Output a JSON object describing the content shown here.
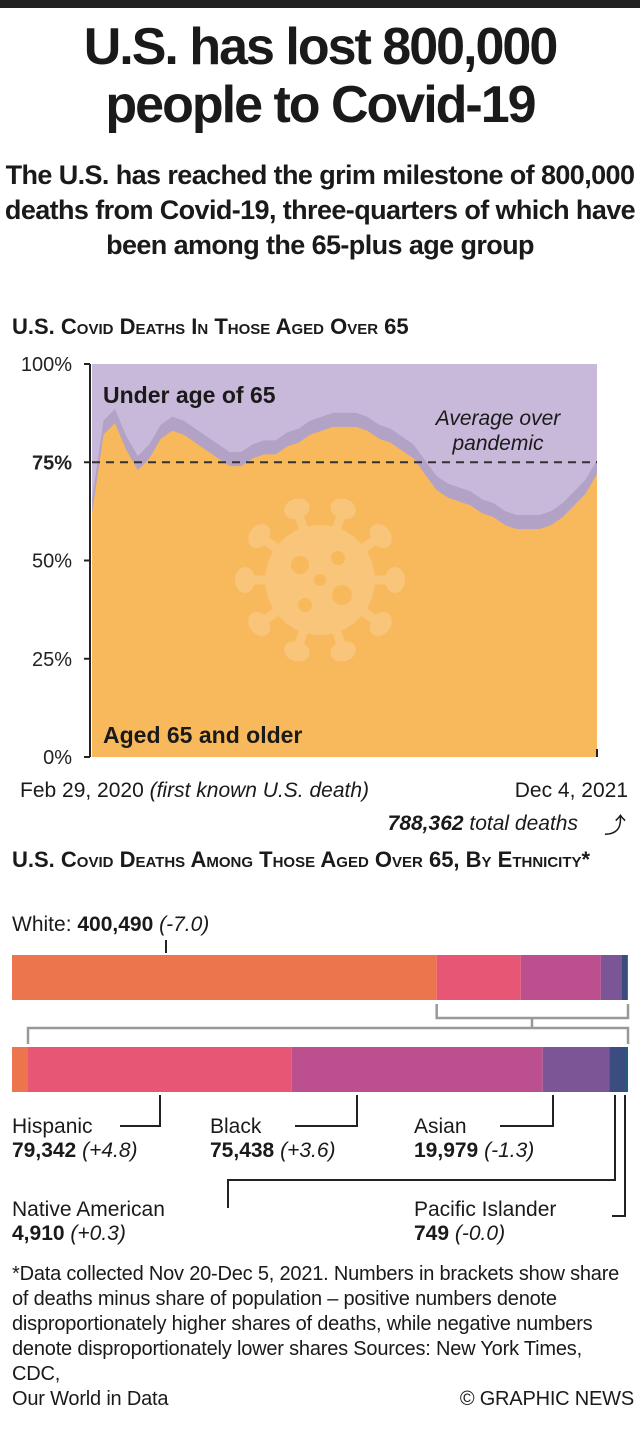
{
  "header": {
    "title_line1": "U.S. has lost 800,000",
    "title_line2": "people to Covid-19",
    "subtitle": "The U.S. has reached the grim milestone of 800,000 deaths from Covid-19, three-quarters of which have been among the 65-plus age group"
  },
  "chart_data": [
    {
      "type": "area",
      "title": "U.S. Covid Deaths In Those Aged Over 65",
      "ylim": [
        0,
        100
      ],
      "yticks": [
        "0%",
        "25%",
        "50%",
        "75%",
        "100%"
      ],
      "x_start_label": "Feb 29, 2020",
      "x_start_note": "(first known U.S. death)",
      "x_end_label": "Dec 4, 2021",
      "total_value": "788,362",
      "total_label": "total deaths",
      "series_labels": {
        "upper": "Under age of 65",
        "lower": "Aged 65 and older"
      },
      "average": 75,
      "average_label_1": "Average over",
      "average_label_2": "pandemic",
      "values": [
        62,
        82,
        85,
        78,
        73,
        76,
        81,
        83,
        82,
        80,
        78,
        76,
        74,
        74,
        76,
        77,
        77,
        79,
        80,
        82,
        83,
        84,
        84,
        84,
        83,
        81,
        80,
        78,
        76,
        72,
        68,
        66,
        65,
        64,
        62,
        61,
        59,
        58,
        58,
        58,
        59,
        61,
        64,
        67,
        72
      ]
    },
    {
      "type": "bar",
      "title": "U.S. Covid Deaths Among Those Aged Over 65, By Ethnicity*",
      "categories": [
        "White",
        "Hispanic",
        "Black",
        "Asian",
        "Native American",
        "Pacific Islander"
      ],
      "values": [
        400490,
        79342,
        75438,
        19979,
        4910,
        749
      ],
      "value_labels": [
        "400,490",
        "79,342",
        "75,438",
        "19,979",
        "4,910",
        "749"
      ],
      "diffs": [
        "(-7.0)",
        "(+4.8)",
        "(+3.6)",
        "(-1.3)",
        "(+0.3)",
        "(-0.0)"
      ],
      "colors": [
        "#ec754e",
        "#e85676",
        "#bc4f8e",
        "#7c5596",
        "#3a4c80",
        "#1d5f7e"
      ]
    }
  ],
  "footer": {
    "note": "*Data collected Nov 20-Dec 5, 2021. Numbers in brackets show share of deaths minus share of population – positive numbers denote disproportionately higher shares of deaths, while negative numbers denote disproportionately lower shares Sources: New York Times, CDC,",
    "note_last": "Our World in Data",
    "credit": "© GRAPHIC NEWS"
  }
}
